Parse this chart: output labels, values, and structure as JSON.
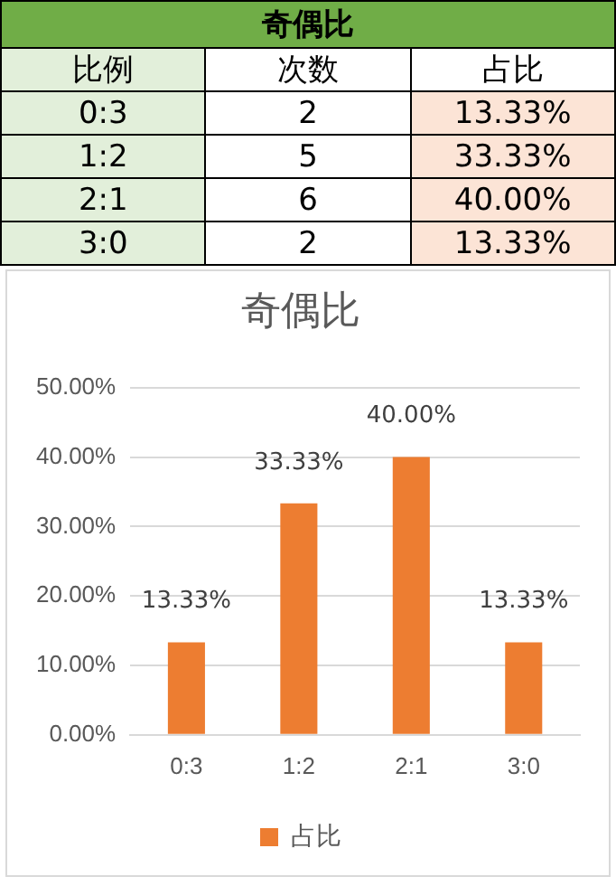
{
  "chart_data": [
    {
      "type": "other",
      "title": "奇偶比",
      "annotations": [
        "比例",
        "次数",
        "占比",
        "0:3",
        "2",
        "13.33%",
        "1:2",
        "5",
        "33.33%",
        "2:1",
        "6",
        "40.00%",
        "3:0",
        "2",
        "13.33%"
      ]
    },
    {
      "type": "bar",
      "title": "奇偶比",
      "categories": [
        "0:3",
        "1:2",
        "2:1",
        "3:0"
      ],
      "series": [
        {
          "name": "占比",
          "color": "#ed7d31",
          "values": [
            13.33,
            33.33,
            40,
            13.33
          ],
          "value_labels": [
            "13.33%",
            "33.33%",
            "40.00%",
            "13.33%"
          ]
        }
      ],
      "ylim": [
        0,
        50
      ],
      "yticks": [
        {
          "value": 0,
          "label": "0.00%"
        },
        {
          "value": 10,
          "label": "10.00%"
        },
        {
          "value": 20,
          "label": "20.00%"
        },
        {
          "value": 30,
          "label": "30.00%"
        },
        {
          "value": 40,
          "label": "40.00%"
        },
        {
          "value": 50,
          "label": "50.00%"
        }
      ],
      "grid": "y",
      "legend": "bottom"
    }
  ]
}
